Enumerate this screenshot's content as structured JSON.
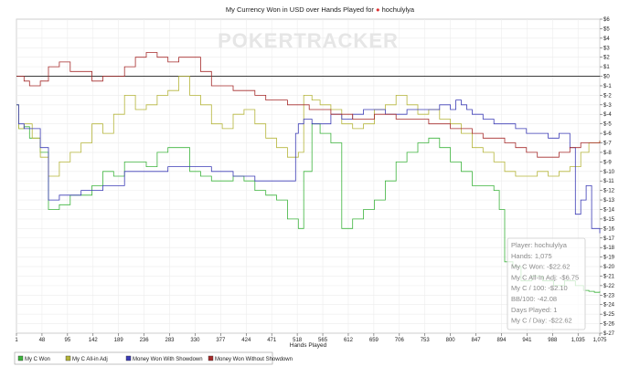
{
  "chart_data": {
    "type": "line",
    "title": "My Currency Won in USD over Hands Played for",
    "player": "hochulylya",
    "xlabel": "Hands Played",
    "ylabel": "",
    "xlim": [
      1,
      1075
    ],
    "ylim": [
      -27,
      6
    ],
    "x_ticks": [
      "1",
      "48",
      "95",
      "142",
      "189",
      "236",
      "283",
      "330",
      "377",
      "424",
      "471",
      "518",
      "565",
      "612",
      "659",
      "706",
      "753",
      "800",
      "847",
      "894",
      "941",
      "988",
      "1,035",
      "1,075"
    ],
    "x_tick_values": [
      1,
      48,
      95,
      142,
      189,
      236,
      283,
      330,
      377,
      424,
      471,
      518,
      565,
      612,
      659,
      706,
      753,
      800,
      847,
      894,
      941,
      988,
      1035,
      1075
    ],
    "y_ticks": [
      "$6",
      "$5",
      "$4",
      "$3",
      "$2",
      "$1",
      "$0",
      "$-1",
      "$-2",
      "$-3",
      "$-4",
      "$-5",
      "$-6",
      "$-7",
      "$-8",
      "$-9",
      "$-10",
      "$-11",
      "$-12",
      "$-13",
      "$-14",
      "$-15",
      "$-16",
      "$-17",
      "$-18",
      "$-19",
      "$-20",
      "$-21",
      "$-22",
      "$-23",
      "$-24",
      "$-25",
      "$-26",
      "$-27"
    ],
    "y_tick_values": [
      6,
      5,
      4,
      3,
      2,
      1,
      0,
      -1,
      -2,
      -3,
      -4,
      -5,
      -6,
      -7,
      -8,
      -9,
      -10,
      -11,
      -12,
      -13,
      -14,
      -15,
      -16,
      -17,
      -18,
      -19,
      -20,
      -21,
      -22,
      -23,
      -24,
      -25,
      -26,
      -27
    ],
    "grid": true,
    "legend_position": "bottom-left",
    "watermark": "POKERTRACKER",
    "series": [
      {
        "name": "My C Won",
        "color": "#3cb33c",
        "x": [
          1,
          5,
          15,
          25,
          45,
          60,
          80,
          100,
          120,
          140,
          160,
          180,
          200,
          220,
          240,
          260,
          280,
          300,
          320,
          340,
          360,
          380,
          400,
          420,
          440,
          460,
          480,
          500,
          520,
          530,
          545,
          560,
          580,
          600,
          620,
          640,
          660,
          680,
          700,
          720,
          740,
          760,
          780,
          800,
          820,
          840,
          860,
          880,
          890,
          900,
          915,
          930,
          950,
          970,
          990,
          1010,
          1030,
          1045,
          1055,
          1065,
          1075
        ],
        "y": [
          -3,
          -5.5,
          -5.3,
          -6.5,
          -8,
          -14,
          -13.5,
          -12.5,
          -12.5,
          -11.5,
          -10,
          -10.5,
          -9,
          -9,
          -9.5,
          -8,
          -7.5,
          -7.5,
          -10,
          -10.5,
          -11,
          -11,
          -10.5,
          -11,
          -12,
          -12.5,
          -13,
          -15,
          -16,
          -10,
          -5,
          -6,
          -7,
          -16,
          -15,
          -14,
          -13,
          -11,
          -9,
          -8,
          -7,
          -6.5,
          -7.5,
          -9,
          -10,
          -11.5,
          -11.5,
          -12,
          -14,
          -19.5,
          -20,
          -21.5,
          -21,
          -21.5,
          -22,
          -21.5,
          -22,
          -22.5,
          -22.6,
          -22.7,
          -22.62
        ]
      },
      {
        "name": "My C All-in Adj",
        "color": "#b5b53a",
        "x": [
          1,
          5,
          15,
          30,
          45,
          60,
          80,
          100,
          120,
          140,
          160,
          180,
          200,
          220,
          240,
          260,
          280,
          300,
          320,
          340,
          360,
          380,
          400,
          420,
          440,
          460,
          480,
          500,
          520,
          530,
          545,
          560,
          580,
          600,
          620,
          640,
          660,
          680,
          700,
          720,
          740,
          760,
          780,
          800,
          820,
          840,
          860,
          880,
          900,
          920,
          940,
          960,
          980,
          1000,
          1020,
          1040,
          1055,
          1075
        ],
        "y": [
          -3,
          -5.5,
          -5,
          -6.5,
          -8.5,
          -10.5,
          -9,
          -8,
          -7,
          -5,
          -6,
          -4,
          -2,
          -3.5,
          -3,
          -2,
          -1.5,
          0,
          -2,
          -3,
          -5,
          -5.5,
          -4,
          -3.5,
          -5,
          -6.5,
          -7.5,
          -8.5,
          -8,
          -2,
          -2.5,
          -3,
          -3.5,
          -5,
          -5.5,
          -5,
          -3.5,
          -3,
          -2,
          -3,
          -4,
          -3.5,
          -4.5,
          -5,
          -6,
          -7.5,
          -8,
          -9,
          -10,
          -10.5,
          -10.5,
          -10,
          -10.5,
          -10,
          -9.5,
          -8,
          -7,
          -6.75
        ]
      },
      {
        "name": "Money Won With Showdown",
        "color": "#3b3bb5",
        "x": [
          1,
          5,
          15,
          45,
          60,
          80,
          120,
          160,
          200,
          240,
          280,
          320,
          360,
          400,
          440,
          480,
          500,
          515,
          520,
          530,
          545,
          560,
          580,
          600,
          620,
          640,
          660,
          680,
          700,
          720,
          740,
          760,
          780,
          800,
          810,
          820,
          830,
          840,
          860,
          880,
          900,
          920,
          940,
          960,
          980,
          1000,
          1020,
          1030,
          1040,
          1050,
          1060,
          1075
        ],
        "y": [
          -3,
          -5,
          -5.5,
          -7.5,
          -13,
          -12.5,
          -12,
          -11.5,
          -10,
          -10,
          -9.5,
          -9.5,
          -10,
          -10.5,
          -11,
          -11,
          -11,
          -6,
          -5,
          -4.5,
          -5,
          -5,
          -4,
          -4.5,
          -4,
          -3.5,
          -3.5,
          -4,
          -4,
          -3.5,
          -3.5,
          -3.5,
          -3,
          -3.5,
          -2.5,
          -3,
          -3.5,
          -4,
          -4.5,
          -5,
          -5,
          -5.5,
          -6,
          -6,
          -6.5,
          -6,
          -7.5,
          -14.5,
          -13,
          -11.5,
          -16,
          -16.5
        ]
      },
      {
        "name": "Money Won Without Showdown",
        "color": "#a52a2a",
        "x": [
          1,
          5,
          15,
          25,
          45,
          60,
          80,
          100,
          120,
          140,
          160,
          180,
          200,
          220,
          240,
          260,
          280,
          300,
          320,
          340,
          360,
          380,
          400,
          420,
          440,
          460,
          480,
          500,
          520,
          540,
          560,
          580,
          600,
          620,
          640,
          660,
          680,
          700,
          720,
          740,
          760,
          780,
          800,
          820,
          840,
          860,
          880,
          900,
          920,
          940,
          960,
          980,
          1000,
          1020,
          1040,
          1055,
          1075
        ],
        "y": [
          0,
          0,
          -0.5,
          -1,
          -0.5,
          1,
          1.5,
          0.5,
          0.5,
          -0.5,
          0,
          0,
          1,
          2,
          2.5,
          2,
          1.5,
          2,
          2,
          0.5,
          -1,
          -1,
          -1.5,
          -1.5,
          -2,
          -2.5,
          -2.5,
          -3,
          -3,
          -3.5,
          -3.5,
          -4,
          -4,
          -4.5,
          -4.5,
          -4,
          -4,
          -4.5,
          -4.5,
          -4.5,
          -5,
          -5,
          -5.5,
          -5.5,
          -6,
          -6.5,
          -6.5,
          -7,
          -7.5,
          -8,
          -8.5,
          -8.5,
          -8,
          -7.5,
          -7,
          -7,
          -6.8
        ]
      }
    ],
    "info_box": {
      "lines": [
        "Player: hochulylya",
        "Hands: 1,075",
        "My C Won: -$22.62",
        "My C All-In Adj: -$6.75",
        "My C / 100: -$2.10",
        "BB/100: -42.08",
        "Days Played: 1",
        "My C / Day: -$22.62"
      ]
    }
  }
}
